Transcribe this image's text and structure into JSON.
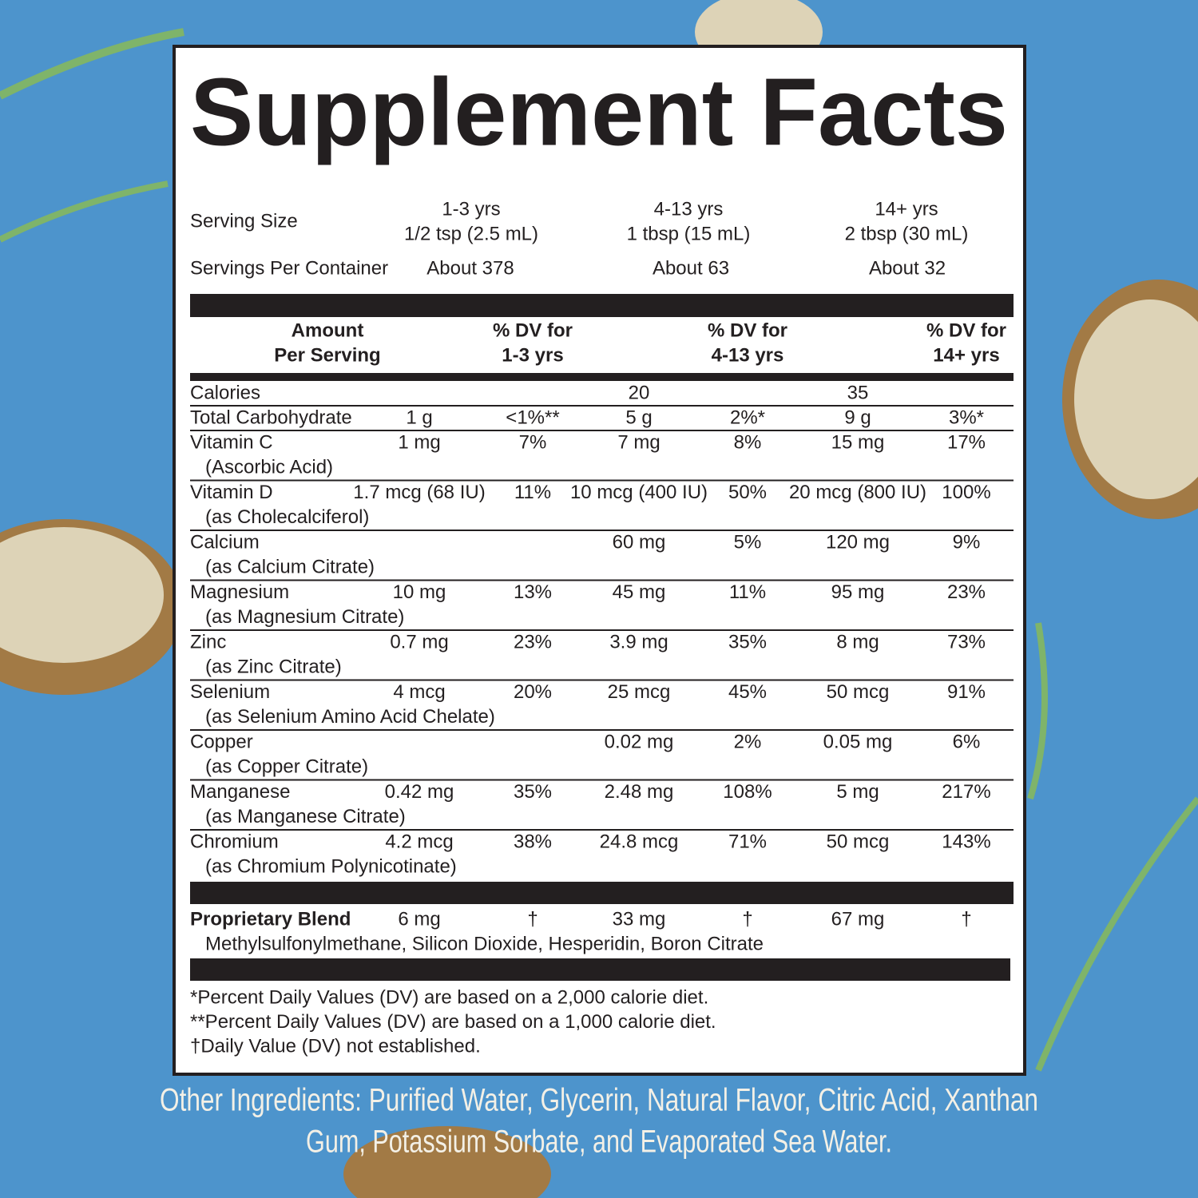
{
  "title": "Supplement Facts",
  "serving_size": {
    "label": "Serving Size",
    "columns": [
      [
        "1-3 yrs",
        "1/2 tsp (2.5 mL)"
      ],
      [
        "4-13 yrs",
        "1 tbsp (15 mL)"
      ],
      [
        "14+ yrs",
        "2 tbsp (30 mL)"
      ]
    ]
  },
  "servings_per_container": {
    "label": "Servings Per Container",
    "values": [
      "About 378",
      "About 63",
      "About 32"
    ]
  },
  "header": {
    "amount": [
      "Amount",
      "Per Serving"
    ],
    "dv": [
      [
        "% DV for",
        "1-3 yrs"
      ],
      [
        "% DV for",
        "4-13 yrs"
      ],
      [
        "% DV for",
        "14+ yrs"
      ]
    ]
  },
  "rows": [
    {
      "name": "Calories",
      "sub": null,
      "cells": [
        null,
        null,
        "20",
        null,
        "35",
        null
      ]
    },
    {
      "name": "Total Carbohydrate",
      "sub": null,
      "cells": [
        "1 g",
        "<1%**",
        "5 g",
        "2%*",
        "9 g",
        "3%*"
      ]
    },
    {
      "name": "Vitamin C",
      "sub": "(Ascorbic Acid)",
      "cells": [
        "1 mg",
        "7%",
        "7 mg",
        "8%",
        "15 mg",
        "17%"
      ]
    },
    {
      "name": "Vitamin D",
      "sub": "(as Cholecalciferol)",
      "cells": [
        "1.7 mcg (68 IU)",
        "11%",
        "10 mcg (400 IU)",
        "50%",
        "20 mcg (800 IU)",
        "100%"
      ]
    },
    {
      "name": "Calcium",
      "sub": "(as Calcium Citrate)",
      "cells": [
        null,
        null,
        "60 mg",
        "5%",
        "120 mg",
        "9%"
      ]
    },
    {
      "name": "Magnesium",
      "sub": "(as Magnesium Citrate)",
      "cells": [
        "10 mg",
        "13%",
        "45 mg",
        "11%",
        "95 mg",
        "23%"
      ]
    },
    {
      "name": "Zinc",
      "sub": "(as Zinc Citrate)",
      "cells": [
        "0.7 mg",
        "23%",
        "3.9 mg",
        "35%",
        "8 mg",
        "73%"
      ]
    },
    {
      "name": "Selenium",
      "sub": "(as Selenium Amino Acid Chelate)",
      "cells": [
        "4 mcg",
        "20%",
        "25 mcg",
        "45%",
        "50 mcg",
        "91%"
      ]
    },
    {
      "name": "Copper",
      "sub": "(as Copper Citrate)",
      "cells": [
        null,
        null,
        "0.02 mg",
        "2%",
        "0.05 mg",
        "6%"
      ]
    },
    {
      "name": "Manganese",
      "sub": "(as Manganese Citrate)",
      "cells": [
        "0.42 mg",
        "35%",
        "2.48 mg",
        "108%",
        "5 mg",
        "217%"
      ]
    },
    {
      "name": "Chromium",
      "sub": "(as Chromium Polynicotinate)",
      "cells": [
        "4.2 mcg",
        "38%",
        "24.8 mcg",
        "71%",
        "50 mcg",
        "143%"
      ]
    }
  ],
  "blend": {
    "name": "Proprietary Blend",
    "cells": [
      "6 mg",
      "†",
      "33 mg",
      "†",
      "67 mg",
      "†"
    ],
    "ingredients": "Methylsulfonylmethane, Silicon Dioxide, Hesperidin, Boron Citrate"
  },
  "footnotes": [
    "*Percent Daily Values (DV) are based on a 2,000 calorie diet.",
    "**Percent Daily Values (DV) are based on a 1,000 calorie diet.",
    "†Daily Value (DV) not established."
  ],
  "other_ingredients": [
    "Other Ingredients: Purified Water, Glycerin, Natural Flavor, Citric Acid, Xanthan",
    "Gum, Potassium Sorbate, and Evaporated Sea Water."
  ]
}
